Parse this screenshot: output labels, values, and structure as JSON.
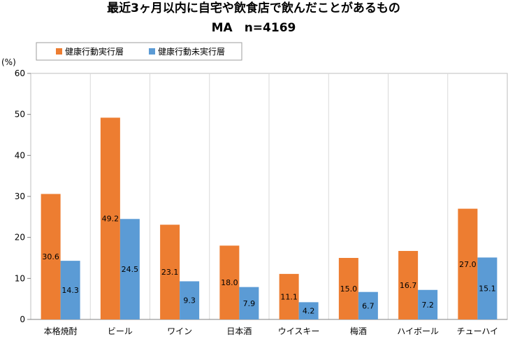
{
  "chart_data": {
    "type": "bar",
    "title": "最近3ヶ月以内に自宅や飲食店で飲んだことがあるもの",
    "subtitle": "MA　n=4169",
    "ylabel": "(%)",
    "xlabel": "",
    "ylim": [
      0,
      60
    ],
    "yticks": [
      0,
      10,
      20,
      30,
      40,
      50,
      60
    ],
    "grid": "vertical category separators",
    "legend_position": "top-left",
    "categories": [
      "本格焼酎",
      "ビール",
      "ワイン",
      "日本酒",
      "ウイスキー",
      "梅酒",
      "ハイボール",
      "チューハイ"
    ],
    "series": [
      {
        "name": "健康行動実行層",
        "color": "#ED7D31",
        "values": [
          30.6,
          49.2,
          23.1,
          18.0,
          11.1,
          15.0,
          16.7,
          27.0
        ]
      },
      {
        "name": "健康行動未実行層",
        "color": "#5B9BD5",
        "values": [
          14.3,
          24.5,
          9.3,
          7.9,
          4.2,
          6.7,
          7.2,
          15.1
        ]
      }
    ]
  }
}
